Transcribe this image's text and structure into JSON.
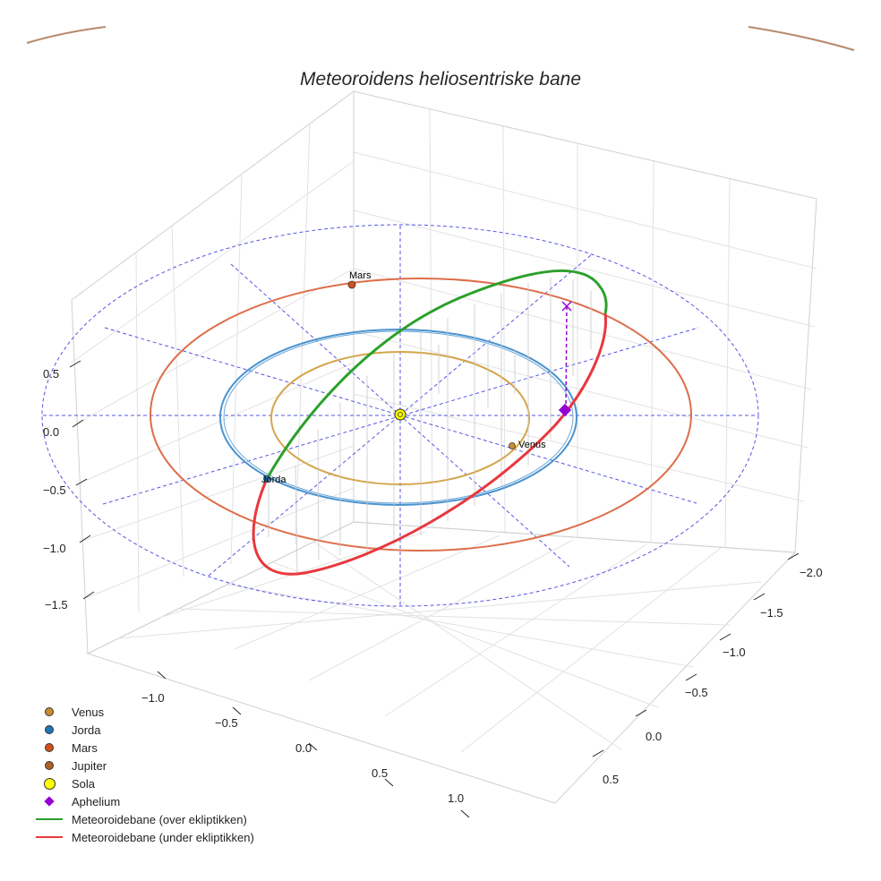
{
  "chart_data": {
    "type": "scatter3d",
    "title": "Meteoroidens heliosentriske bane",
    "axes": {
      "x": {
        "ticks": [
          "−1.0",
          "−0.5",
          "0.0",
          "0.5",
          "1.0"
        ]
      },
      "y": {
        "ticks": [
          "−2.0",
          "−1.5",
          "−1.0",
          "−0.5",
          "0.0",
          "0.5"
        ]
      },
      "z": {
        "ticks": [
          "0.5",
          "0.0",
          "−0.5",
          "−1.0",
          "−1.5"
        ]
      }
    },
    "planets": [
      {
        "name": "Venus",
        "orbit_radius_au": 0.72,
        "label": "Venus",
        "color": "#cc8b2e",
        "orbit_color": "#d4a64c"
      },
      {
        "name": "Jorda",
        "orbit_radius_au": 1.0,
        "label": "Jorda",
        "color": "#1f77b4",
        "orbit_color": "#4c93cf"
      },
      {
        "name": "Mars",
        "orbit_radius_au": 1.52,
        "label": "Mars",
        "color": "#d2521c",
        "orbit_color": "#dd6e4a"
      },
      {
        "name": "Jupiter",
        "color": "#b0602a"
      }
    ],
    "sun": {
      "name": "Sola",
      "color": "#ffff00"
    },
    "aphelium": {
      "name": "Aphelium",
      "color": "#9400d3"
    },
    "meteoroid_orbit": {
      "above_label": "Meteoroidebane (over ekliptikken)",
      "below_label": "Meteoroidebane (under ekliptikken)",
      "above_color": "#2ca02c",
      "below_color": "#e8383d"
    },
    "reference_grid_color": "#4040e0"
  },
  "legend": {
    "items": [
      {
        "kind": "dot",
        "label": "Venus",
        "color": "#cc8b2e"
      },
      {
        "kind": "dot",
        "label": "Jorda",
        "color": "#1f77b4"
      },
      {
        "kind": "dot",
        "label": "Mars",
        "color": "#d2521c"
      },
      {
        "kind": "dot",
        "label": "Jupiter",
        "color": "#b0602a"
      },
      {
        "kind": "sun",
        "label": "Sola",
        "color": "#ffff00"
      },
      {
        "kind": "diamond",
        "label": "Aphelium",
        "color": "#9400d3"
      },
      {
        "kind": "line",
        "label": "Meteoroidebane (over ekliptikken)",
        "color": "#2ca02c"
      },
      {
        "kind": "line",
        "label": "Meteoroidebane (under ekliptikken)",
        "color": "#e8383d"
      }
    ]
  }
}
